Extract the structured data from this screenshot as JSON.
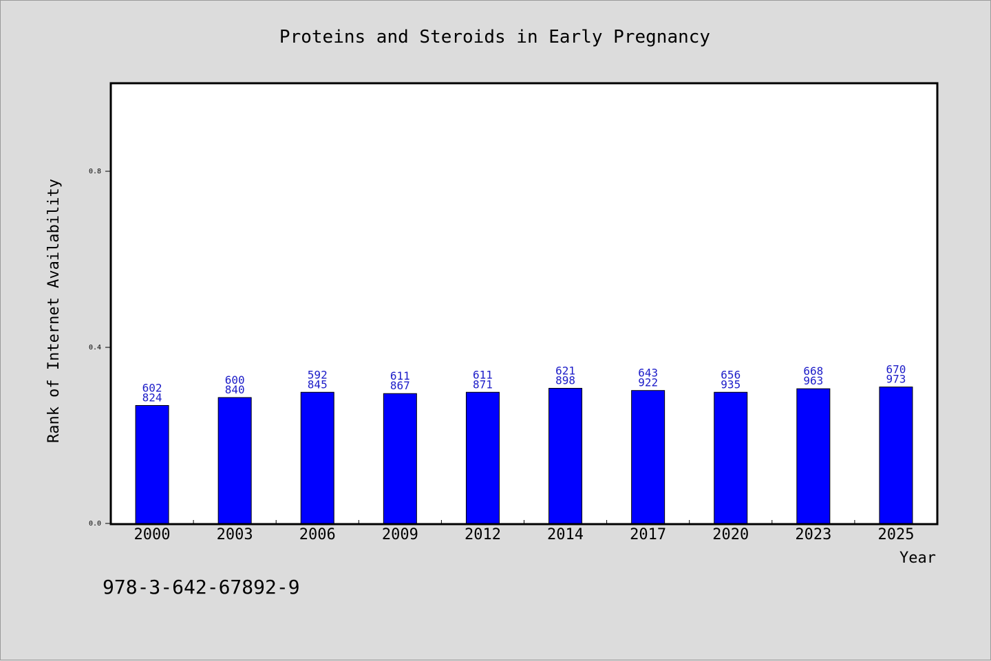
{
  "chart_data": {
    "type": "bar",
    "title": "Proteins and Steroids in Early Pregnancy",
    "xlabel": "Year",
    "ylabel": "Rank of Internet Availability",
    "categories": [
      "2000",
      "2003",
      "2006",
      "2009",
      "2012",
      "2014",
      "2017",
      "2020",
      "2023",
      "2025"
    ],
    "series": [
      {
        "values": [
          0.268,
          0.286,
          0.298,
          0.295,
          0.298,
          0.307,
          0.302,
          0.298,
          0.306,
          0.31
        ]
      }
    ],
    "data_labels": [
      [
        "602",
        "824"
      ],
      [
        "600",
        "840"
      ],
      [
        "592",
        "845"
      ],
      [
        "611",
        "867"
      ],
      [
        "611",
        "871"
      ],
      [
        "621",
        "898"
      ],
      [
        "643",
        "922"
      ],
      [
        "656",
        "935"
      ],
      [
        "668",
        "963"
      ],
      [
        "670",
        "973"
      ]
    ],
    "ylim": [
      0,
      1.0
    ],
    "yticks": [
      "0.0",
      "0.4",
      "0.8"
    ],
    "grid": false,
    "bar_color": "#0000ff",
    "label_color": "#1c1cc8",
    "background_color": "#dcdcdc",
    "plot_background_color": "#ffffff"
  },
  "footer": {
    "isbn": "978-3-642-67892-9"
  }
}
